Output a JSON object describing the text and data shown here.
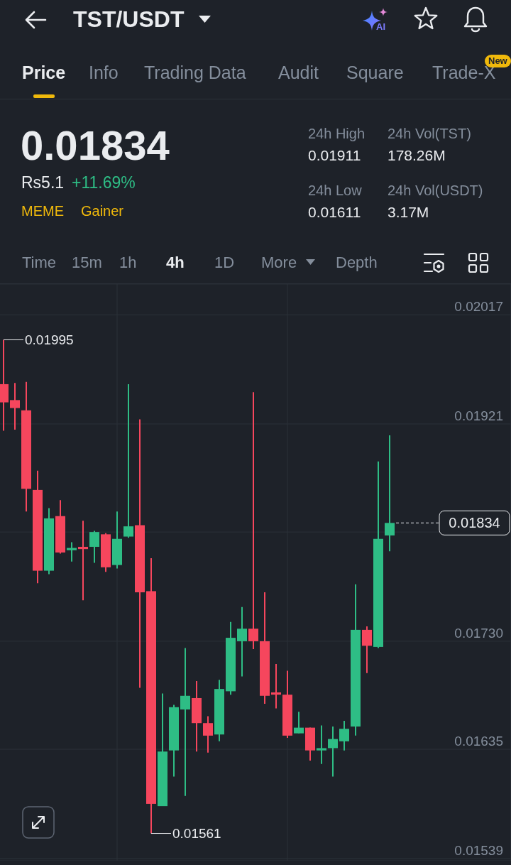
{
  "chart_data": [
    {
      "type": "other",
      "title": "TST/USDT",
      "annotations": [
        "Price",
        "Info",
        "Trading Data",
        "Audit",
        "Square",
        "Trade-X",
        "New",
        "AI",
        "0.01834",
        "Rs5.1",
        "+11.69%",
        "MEME",
        "Gainer",
        "24h High",
        "0.01911",
        "24h Low",
        "0.01611",
        "24h Vol(TST)",
        "178.26M",
        "24h Vol(USDT)",
        "3.17M",
        "Time",
        "15m",
        "1h",
        "4h",
        "1D",
        "More",
        "Depth"
      ]
    },
    {
      "type": "candlestick",
      "categories": [
        null,
        null,
        null,
        null,
        null,
        null,
        null,
        null,
        null,
        null,
        null,
        null,
        null,
        null,
        null,
        null,
        null,
        null,
        null,
        null,
        null,
        null,
        null,
        null,
        null,
        null,
        null,
        null,
        null,
        null,
        null,
        null,
        null,
        null,
        null
      ],
      "ohlc": [
        [
          0.01956,
          0.01995,
          0.01915,
          0.0194
        ],
        [
          0.01942,
          0.01957,
          0.01916,
          0.01935
        ],
        [
          0.01933,
          0.01958,
          0.01844,
          0.01864
        ],
        [
          0.01863,
          0.0188,
          0.01781,
          0.01792
        ],
        [
          0.01792,
          0.01847,
          0.01789,
          0.01838
        ],
        [
          0.0184,
          0.01854,
          0.01807,
          0.01808
        ],
        [
          0.0181,
          0.01817,
          0.018,
          0.01812
        ],
        [
          0.01813,
          0.01836,
          0.01766,
          0.01811
        ],
        [
          0.01813,
          0.01827,
          0.01799,
          0.01826
        ],
        [
          0.01824,
          0.01825,
          0.01791,
          0.01795
        ],
        [
          0.01797,
          0.01844,
          0.01794,
          0.0182
        ],
        [
          0.01822,
          0.01956,
          0.01821,
          0.01831
        ],
        [
          0.01832,
          0.01925,
          0.01689,
          0.01773
        ],
        [
          0.01774,
          0.01803,
          0.01561,
          0.01587
        ],
        [
          0.01585,
          0.01684,
          0.01585,
          0.01633
        ],
        [
          0.01634,
          0.01674,
          0.01611,
          0.01672
        ],
        [
          0.0167,
          0.01724,
          0.01594,
          0.01682
        ],
        [
          0.0168,
          0.01695,
          0.01633,
          0.01658
        ],
        [
          0.01658,
          0.01664,
          0.01632,
          0.01647
        ],
        [
          0.01648,
          0.01696,
          0.01642,
          0.01688
        ],
        [
          0.01686,
          0.01747,
          0.01683,
          0.01733
        ],
        [
          0.0173,
          0.0176,
          0.01699,
          0.01741
        ],
        [
          0.01741,
          0.01949,
          0.01723,
          0.0173
        ],
        [
          0.0173,
          0.01773,
          0.01675,
          0.01682
        ],
        [
          0.01685,
          0.0171,
          0.01671,
          0.01683
        ],
        [
          0.01683,
          0.01704,
          0.01645,
          0.01647
        ],
        [
          0.01649,
          0.01668,
          0.01649,
          0.01654
        ],
        [
          0.01654,
          0.01654,
          0.01625,
          0.01634
        ],
        [
          0.01634,
          0.01656,
          0.01622,
          0.01636
        ],
        [
          0.01636,
          0.01655,
          0.01611,
          0.01644
        ],
        [
          0.01642,
          0.0166,
          0.01634,
          0.01653
        ],
        [
          0.01655,
          0.0178,
          0.01647,
          0.0174
        ],
        [
          0.0174,
          0.01743,
          0.01702,
          0.01726
        ],
        [
          0.01725,
          0.01888,
          0.01724,
          0.0182
        ],
        [
          0.01823,
          0.01911,
          0.01809,
          0.01834
        ]
      ],
      "colors": [
        "#f6465d",
        "#f6465d",
        "#f6465d",
        "#f6465d",
        "#2ebd85",
        "#f6465d",
        "#2ebd85",
        "#f6465d",
        "#2ebd85",
        "#f6465d",
        "#2ebd85",
        "#2ebd85",
        "#f6465d",
        "#f6465d",
        "#2ebd85",
        "#2ebd85",
        "#2ebd85",
        "#f6465d",
        "#f6465d",
        "#2ebd85",
        "#2ebd85",
        "#2ebd85",
        "#f6465d",
        "#f6465d",
        "#f6465d",
        "#f6465d",
        "#2ebd85",
        "#f6465d",
        "#2ebd85",
        "#2ebd85",
        "#2ebd85",
        "#2ebd85",
        "#f6465d",
        "#2ebd85",
        "#2ebd85"
      ],
      "ylim": [
        0.01537,
        0.02044
      ],
      "yticks": [
        0.02017,
        0.01921,
        {
          "value": 0.01826,
          "label": null
        },
        {
          "value": 0.0173,
          "label": "0.01730"
        },
        0.01635,
        0.01539
      ],
      "tick_labels": "y",
      "grid": true,
      "ref_lines": [
        {
          "axis": "y",
          "value": 0.01834,
          "label": "0.01834",
          "color": "#eaecef",
          "line_style": "dashed"
        }
      ],
      "annotations": [
        "0.01995",
        "0.01561"
      ]
    }
  ]
}
